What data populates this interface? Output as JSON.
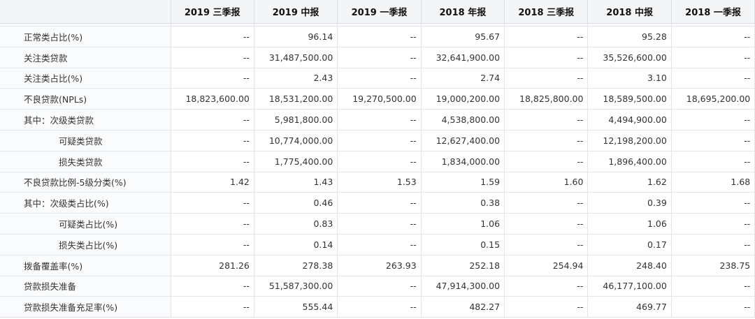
{
  "header": {
    "corner": "",
    "columns": [
      "2019 三季报",
      "2019 中报",
      "2019 一季报",
      "2018 年报",
      "2018 三季报",
      "2018 中报",
      "2018 一季报"
    ]
  },
  "rows": [
    {
      "label": "正常类占比(%)",
      "indent": false,
      "values": [
        "--",
        "96.14",
        "--",
        "95.67",
        "--",
        "95.28",
        "--"
      ]
    },
    {
      "label": "关注类贷款",
      "indent": false,
      "values": [
        "--",
        "31,487,500.00",
        "--",
        "32,641,900.00",
        "--",
        "35,526,600.00",
        "--"
      ]
    },
    {
      "label": "关注类占比(%)",
      "indent": false,
      "values": [
        "--",
        "2.43",
        "--",
        "2.74",
        "--",
        "3.10",
        "--"
      ]
    },
    {
      "label": "不良贷款(NPLs)",
      "indent": false,
      "values": [
        "18,823,600.00",
        "18,531,200.00",
        "19,270,500.00",
        "19,000,200.00",
        "18,825,800.00",
        "18,589,500.00",
        "18,695,200.00"
      ]
    },
    {
      "label": "其中：次级类贷款",
      "indent": false,
      "values": [
        "--",
        "5,981,800.00",
        "--",
        "4,538,800.00",
        "--",
        "4,494,900.00",
        "--"
      ]
    },
    {
      "label": "可疑类贷款",
      "indent": true,
      "values": [
        "--",
        "10,774,000.00",
        "--",
        "12,627,400.00",
        "--",
        "12,198,200.00",
        "--"
      ]
    },
    {
      "label": "损失类贷款",
      "indent": true,
      "values": [
        "--",
        "1,775,400.00",
        "--",
        "1,834,000.00",
        "--",
        "1,896,400.00",
        "--"
      ]
    },
    {
      "label": "不良贷款比例-5级分类(%)",
      "indent": false,
      "values": [
        "1.42",
        "1.43",
        "1.53",
        "1.59",
        "1.60",
        "1.62",
        "1.68"
      ]
    },
    {
      "label": "其中：次级类占比(%)",
      "indent": false,
      "values": [
        "--",
        "0.46",
        "--",
        "0.38",
        "--",
        "0.39",
        "--"
      ]
    },
    {
      "label": "可疑类占比(%)",
      "indent": true,
      "values": [
        "--",
        "0.83",
        "--",
        "1.06",
        "--",
        "1.06",
        "--"
      ]
    },
    {
      "label": "损失类占比(%)",
      "indent": true,
      "values": [
        "--",
        "0.14",
        "--",
        "0.15",
        "--",
        "0.17",
        "--"
      ]
    },
    {
      "label": "拨备覆盖率(%)",
      "indent": false,
      "values": [
        "281.26",
        "278.38",
        "263.93",
        "252.18",
        "254.94",
        "248.40",
        "238.75"
      ]
    },
    {
      "label": "贷款损失准备",
      "indent": false,
      "values": [
        "--",
        "51,587,300.00",
        "--",
        "47,914,300.00",
        "--",
        "46,177,100.00",
        "--"
      ]
    },
    {
      "label": "贷款损失准备充足率(%)",
      "indent": false,
      "values": [
        "--",
        "555.44",
        "--",
        "482.27",
        "--",
        "469.77",
        "--"
      ]
    }
  ]
}
